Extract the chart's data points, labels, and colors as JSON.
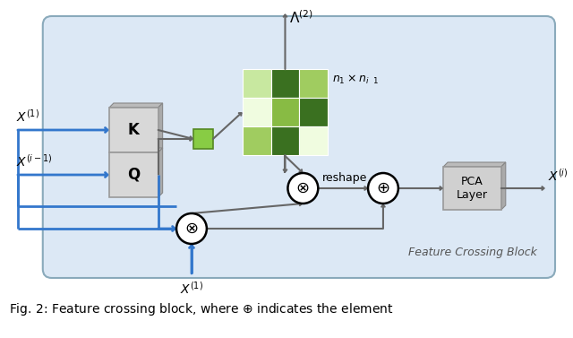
{
  "box_color": "#dce8f5",
  "block_border_color": "#8aaabb",
  "arrow_color_gray": "#666666",
  "arrow_color_blue": "#3377cc",
  "rect_fill": "#d8d8d8",
  "rect_edge": "#999999",
  "pca_fill": "#d0d0d0",
  "pca_edge": "#999999",
  "green_small_fill": "#88cc44",
  "green_small_edge": "#558822",
  "matrix_colors": [
    [
      "#c8e8a0",
      "#3a7020",
      "#a0cc60"
    ],
    [
      "#f0fce0",
      "#88bb44",
      "#3a7020"
    ],
    [
      "#a0cc60",
      "#3a7020",
      "#f0fce0"
    ]
  ],
  "title": "Fig. 2: Feature crossing block, where $\\oplus$ indicates the element",
  "block_label": "Feature Crossing Block",
  "n_label": "$n_1 \\times n_{i \\ \\ 1}$",
  "lambda_label": "$\\Lambda^{(2)}$",
  "X1_label": "$X^{(1)}$",
  "Xi1_label": "$X^{(i-1)}$",
  "Xi_label": "$X^{(i)}$",
  "X1_bot_label": "$X^{(1)}$",
  "K_label": "K",
  "Q_label": "Q",
  "reshape_label": "reshape",
  "pca_label": "PCA\nLayer"
}
